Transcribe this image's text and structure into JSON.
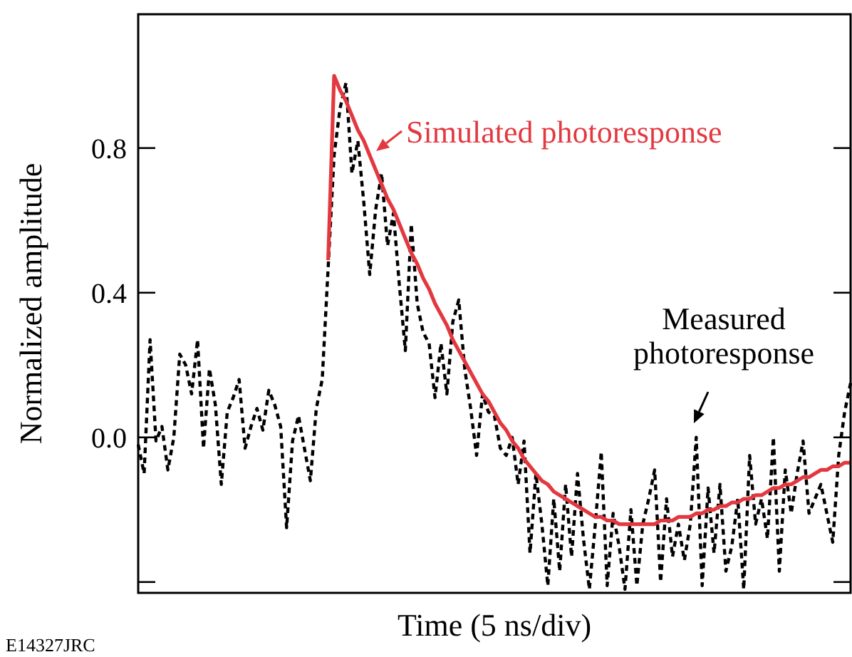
{
  "chart_data": {
    "type": "line",
    "xlabel": "Time (5 ns/div)",
    "ylabel": "Normalized amplitude",
    "categories": [
      null,
      null,
      null,
      null,
      null,
      null,
      null,
      null,
      null,
      null,
      null,
      null,
      null,
      null,
      null,
      null,
      null,
      null,
      null,
      null,
      null,
      null,
      null,
      null,
      null,
      null,
      null,
      null,
      null,
      null,
      null,
      null,
      null,
      null,
      null,
      null,
      null,
      null,
      null,
      null,
      null,
      null,
      null,
      null,
      null,
      null,
      null,
      null,
      null,
      null,
      null,
      null,
      null,
      null,
      null,
      null,
      null,
      null,
      null,
      null,
      null,
      null,
      null,
      null,
      null,
      null,
      null,
      null,
      null,
      null,
      null,
      null,
      null,
      null,
      null,
      null,
      null,
      null,
      null,
      null,
      null,
      null,
      null,
      null,
      null,
      null,
      null,
      null,
      null,
      null,
      null,
      null,
      null,
      null,
      null,
      null,
      null,
      null,
      null,
      null,
      null,
      null,
      null,
      null,
      null,
      null,
      null,
      null,
      null,
      null,
      null,
      null,
      null,
      null,
      null,
      null,
      null,
      null,
      null,
      null,
      null
    ],
    "series": [
      {
        "name": "Measured photoresponse",
        "color": "#000000",
        "line_style": "dashed",
        "values": [
          -0.02,
          -0.1,
          0.27,
          -0.01,
          0.03,
          -0.09,
          0.0,
          0.23,
          0.2,
          0.12,
          0.27,
          -0.03,
          0.19,
          0.09,
          -0.13,
          0.07,
          0.11,
          0.16,
          -0.03,
          0.03,
          0.08,
          0.02,
          0.13,
          0.09,
          0.03,
          -0.25,
          -0.01,
          0.06,
          -0.03,
          -0.12,
          0.08,
          0.16,
          0.47,
          0.78,
          0.91,
          0.98,
          0.73,
          0.82,
          0.65,
          0.45,
          0.63,
          0.73,
          0.53,
          0.62,
          0.42,
          0.24,
          0.59,
          0.37,
          0.29,
          0.26,
          0.11,
          0.26,
          0.12,
          0.32,
          0.38,
          0.19,
          0.08,
          -0.05,
          0.12,
          0.07,
          0.06,
          -0.03,
          -0.05,
          0.0,
          -0.13,
          -0.01,
          -0.32,
          -0.1,
          -0.24,
          -0.41,
          -0.17,
          -0.37,
          -0.13,
          -0.33,
          -0.1,
          -0.28,
          -0.42,
          -0.24,
          -0.04,
          -0.41,
          -0.21,
          -0.3,
          -0.42,
          -0.2,
          -0.41,
          -0.24,
          -0.17,
          -0.09,
          -0.4,
          -0.17,
          -0.33,
          -0.24,
          -0.34,
          -0.24,
          0.0,
          -0.41,
          -0.14,
          -0.32,
          -0.13,
          -0.37,
          -0.3,
          -0.17,
          -0.42,
          -0.05,
          -0.24,
          -0.17,
          -0.28,
          0.0,
          -0.37,
          -0.09,
          -0.21,
          -0.1,
          -0.01,
          -0.21,
          -0.17,
          -0.13,
          -0.21,
          -0.29,
          -0.05,
          0.07,
          0.15
        ]
      },
      {
        "name": "Simulated photoresponse",
        "color": "#e3383f",
        "line_style": "solid",
        "values": [
          null,
          null,
          null,
          null,
          null,
          null,
          null,
          null,
          null,
          null,
          null,
          null,
          null,
          null,
          null,
          null,
          null,
          null,
          null,
          null,
          null,
          null,
          null,
          null,
          null,
          null,
          null,
          null,
          null,
          null,
          null,
          null,
          0.49,
          1.0,
          0.96,
          0.93,
          0.89,
          0.85,
          0.82,
          0.78,
          0.74,
          0.7,
          0.66,
          0.63,
          0.59,
          0.55,
          0.51,
          0.48,
          0.44,
          0.41,
          0.37,
          0.34,
          0.31,
          0.27,
          0.24,
          0.21,
          0.18,
          0.15,
          0.12,
          0.1,
          0.07,
          0.04,
          0.02,
          -0.01,
          -0.03,
          -0.06,
          -0.08,
          -0.1,
          -0.12,
          -0.13,
          -0.15,
          -0.16,
          -0.17,
          -0.18,
          -0.19,
          -0.2,
          -0.21,
          -0.22,
          -0.22,
          -0.23,
          -0.23,
          -0.24,
          -0.24,
          -0.24,
          -0.24,
          -0.24,
          -0.24,
          -0.24,
          -0.23,
          -0.23,
          -0.23,
          -0.22,
          -0.22,
          -0.22,
          -0.21,
          -0.21,
          -0.2,
          -0.2,
          -0.19,
          -0.19,
          -0.18,
          -0.18,
          -0.17,
          -0.17,
          -0.16,
          -0.16,
          -0.15,
          -0.14,
          -0.14,
          -0.13,
          -0.13,
          -0.12,
          -0.11,
          -0.11,
          -0.1,
          -0.09,
          -0.09,
          -0.08,
          -0.08,
          -0.07,
          -0.07
        ]
      }
    ],
    "ylim": [
      -0.43,
      1.17
    ],
    "yticks": [
      {
        "value": -0.4,
        "label": null
      },
      {
        "value": 0.0,
        "label": "0.0"
      },
      {
        "value": 0.4,
        "label": "0.4"
      },
      {
        "value": 0.8,
        "label": "0.8"
      }
    ],
    "annotations": [
      "E14327JRC"
    ],
    "legend": "top right"
  }
}
